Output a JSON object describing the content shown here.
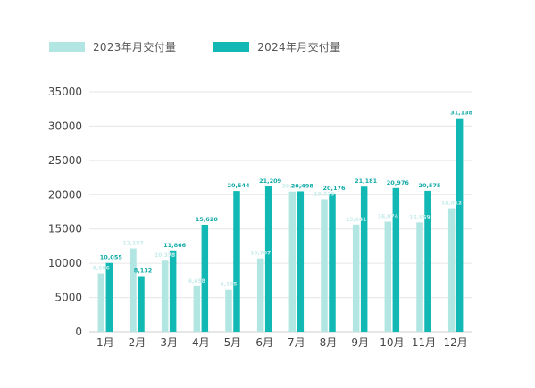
{
  "chart_data": {
    "type": "bar",
    "categories": [
      "1月",
      "2月",
      "3月",
      "4月",
      "5月",
      "6月",
      "7月",
      "8月",
      "9月",
      "10月",
      "11月",
      "12月"
    ],
    "series": [
      {
        "name": "2023年月交付量",
        "color": "#b2e6e3",
        "values": [
          8506,
          12157,
          10378,
          6658,
          6155,
          10707,
          20462,
          19329,
          15641,
          16074,
          15959,
          18012
        ],
        "value_labels": [
          "8,506",
          "12,157",
          "10,378",
          "6,658",
          "6,155",
          "10,707",
          "20,462",
          "19,329",
          "15,641",
          "16,074",
          "15,959",
          "18,012"
        ]
      },
      {
        "name": "2024年月交付量",
        "color": "#12b9b4",
        "values": [
          10055,
          8132,
          11866,
          15620,
          20544,
          21209,
          20498,
          20176,
          21181,
          20976,
          20575,
          31138
        ],
        "value_labels": [
          "10,055",
          "8,132",
          "11,866",
          "15,620",
          "20,544",
          "21,209",
          "20,498",
          "20,176",
          "21,181",
          "20,976",
          "20,575",
          "31,138"
        ]
      }
    ],
    "y_ticks": [
      "0",
      "5000",
      "10000",
      "15000",
      "20000",
      "25000",
      "30000",
      "35000"
    ],
    "ylim": [
      0,
      35000
    ],
    "grid": true,
    "legend_position": "top-left"
  }
}
